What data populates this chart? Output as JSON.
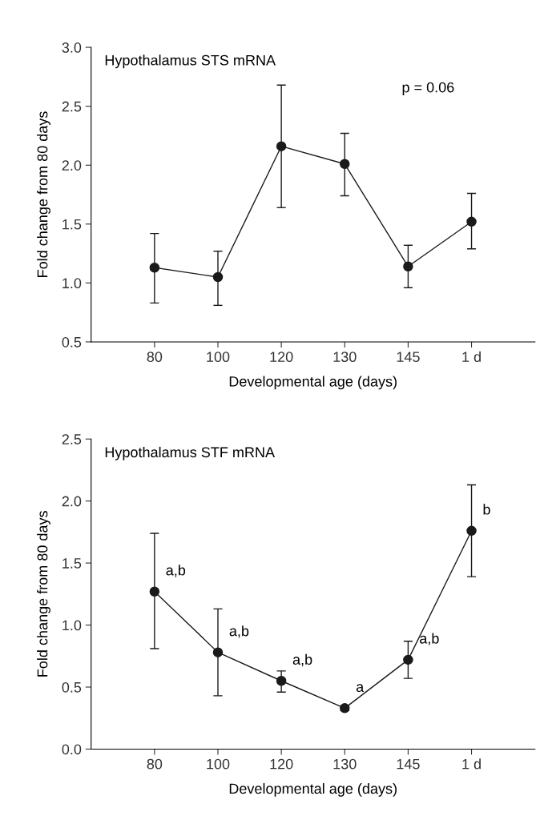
{
  "chart_data": [
    {
      "type": "line",
      "title": "Hypothalamus STS mRNA",
      "xlabel": "Developmental age (days)",
      "ylabel": "Fold change from 80 days",
      "categories": [
        "80",
        "100",
        "120",
        "130",
        "145",
        "1 d"
      ],
      "series": [
        {
          "color": "#1a1a1a",
          "values": [
            1.13,
            1.05,
            2.16,
            2.01,
            1.14,
            1.52
          ],
          "errors": [
            [
              0.83,
              1.42
            ],
            [
              0.81,
              1.27
            ],
            [
              1.64,
              2.68
            ],
            [
              1.74,
              2.27
            ],
            [
              0.96,
              1.32
            ],
            [
              1.29,
              1.76
            ]
          ]
        }
      ],
      "ylim": [
        0.5,
        3.0
      ],
      "yticks": [
        {
          "value": 0.5,
          "label": "0.5"
        },
        {
          "value": 1.0,
          "label": "1.0"
        },
        {
          "value": 1.5,
          "label": "1.5"
        },
        {
          "value": 2.0,
          "label": "2.0"
        },
        {
          "value": 2.5,
          "label": "2.5"
        },
        {
          "value": 3.0,
          "label": "3.0"
        }
      ],
      "marker": "circle",
      "line_style": "solid",
      "grid": false,
      "annotations": [
        "p = 0.06"
      ]
    },
    {
      "type": "line",
      "title": "Hypothalamus STF mRNA",
      "xlabel": "Developmental age (days)",
      "ylabel": "Fold change from 80 days",
      "categories": [
        "80",
        "100",
        "120",
        "130",
        "145",
        "1 d"
      ],
      "series": [
        {
          "color": "#1a1a1a",
          "values": [
            1.27,
            0.78,
            0.55,
            0.33,
            0.72,
            1.76
          ],
          "errors": [
            [
              0.81,
              1.74
            ],
            [
              0.43,
              1.13
            ],
            [
              0.46,
              0.63
            ],
            [
              0.31,
              0.35
            ],
            [
              0.57,
              0.87
            ],
            [
              1.39,
              2.13
            ]
          ]
        }
      ],
      "ylim": [
        0.0,
        2.5
      ],
      "yticks": [
        {
          "value": 0.0,
          "label": "0.0"
        },
        {
          "value": 0.5,
          "label": "0.5"
        },
        {
          "value": 1.0,
          "label": "1.0"
        },
        {
          "value": 1.5,
          "label": "1.5"
        },
        {
          "value": 2.0,
          "label": "2.0"
        },
        {
          "value": 2.5,
          "label": "2.5"
        }
      ],
      "marker": "circle",
      "line_style": "solid",
      "grid": false,
      "annotations": [
        {
          "text": "a,b",
          "x": "80",
          "y": 1.27
        },
        {
          "text": "a,b",
          "x": "100",
          "y": 0.78
        },
        {
          "text": "a,b",
          "x": "120",
          "y": 0.55
        },
        {
          "text": "a",
          "x": "130",
          "y": 0.33
        },
        {
          "text": "a,b",
          "x": "145",
          "y": 0.72
        },
        {
          "text": "b",
          "x": "1 d",
          "y": 1.76
        }
      ]
    }
  ]
}
